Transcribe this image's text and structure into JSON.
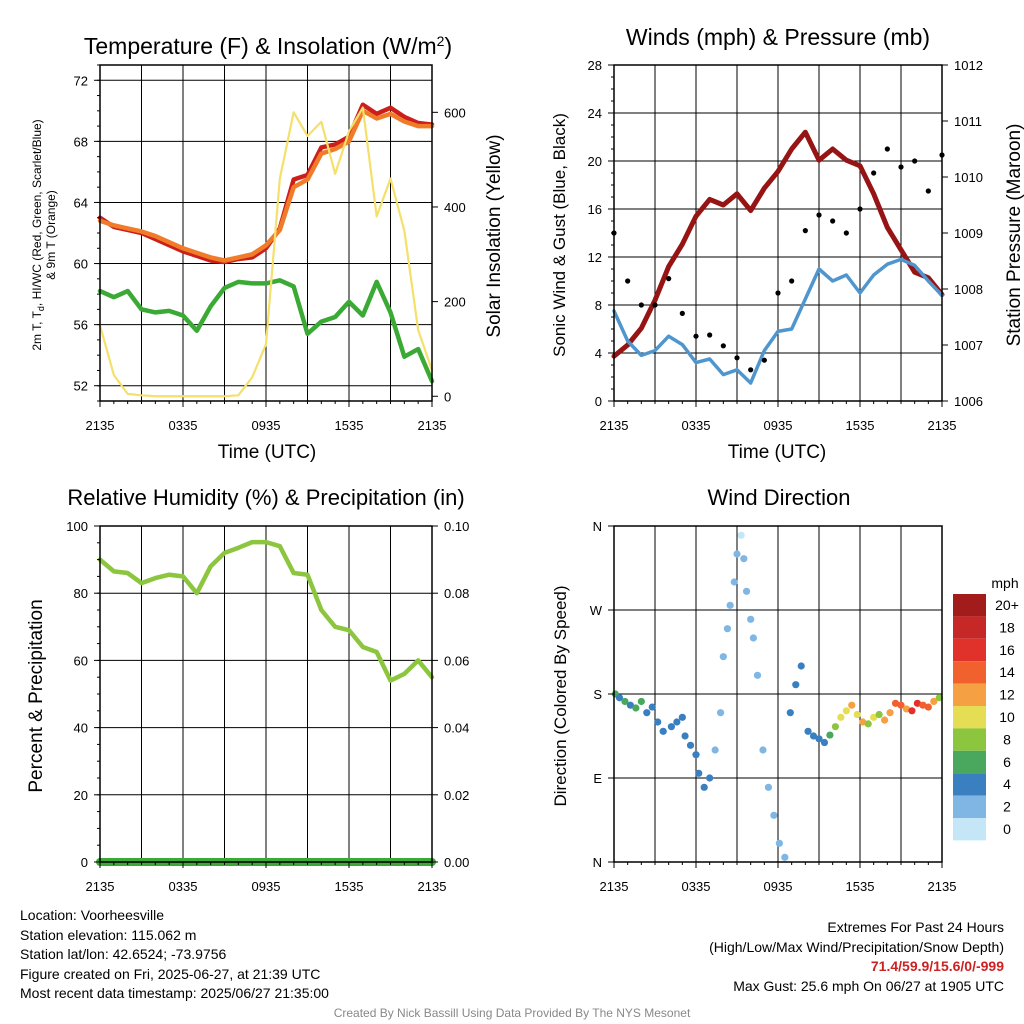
{
  "colors": {
    "temp_2m": "#cc1f1a",
    "heat_index": "#e11e1e",
    "temp_9m": "#f07c2a",
    "dewpoint": "#3aaa35",
    "solar": "#f4e06b",
    "pressure": "#961414",
    "wind": "#4f96cf",
    "gust": "#000000",
    "humidity": "#8cc63f",
    "precip": "#3aaa35"
  },
  "chart_data": [
    {
      "type": "line",
      "title": "Temperature (F) & Insolation (W/m²)",
      "xlabel": "Time (UTC)",
      "ylabel": "2m T, Td, HI/WC (Red, Green, Scarlet/Blue) & 9m T (Orange)",
      "ylabel2": "Solar Insolation (Yellow)",
      "x_ticks": [
        "2135",
        "0335",
        "0935",
        "1535",
        "2135"
      ],
      "y_ticks": [
        52,
        56,
        60,
        64,
        68,
        72
      ],
      "y2_ticks": [
        0,
        200,
        400,
        600
      ],
      "ylim": [
        51,
        73
      ],
      "y2lim": [
        -10,
        700
      ],
      "x": [
        0,
        1,
        2,
        3,
        4,
        5,
        6,
        7,
        8,
        9,
        10,
        11,
        12,
        13,
        14,
        15,
        16,
        17,
        18,
        19,
        20,
        21,
        22,
        23,
        24
      ],
      "series": [
        {
          "key": "temp_2m",
          "values": [
            63,
            62.4,
            62.2,
            62,
            61.6,
            61.2,
            60.8,
            60.5,
            60.2,
            60.1,
            60.3,
            60.4,
            61,
            62.3,
            65.5,
            65.8,
            67.6,
            67.8,
            68.3,
            70.4,
            69.8,
            70.2,
            69.6,
            69.2,
            69.1
          ]
        },
        {
          "key": "temp_9m",
          "values": [
            62.8,
            62.5,
            62.3,
            62.1,
            61.8,
            61.4,
            61,
            60.7,
            60.4,
            60.2,
            60.4,
            60.6,
            61.2,
            62.2,
            65,
            65.5,
            67.2,
            67.5,
            68,
            70,
            69.5,
            69.8,
            69.3,
            69,
            69
          ]
        },
        {
          "key": "dewpoint",
          "values": [
            58.2,
            57.8,
            58.2,
            57,
            56.8,
            56.9,
            56.6,
            55.6,
            57.2,
            58.4,
            58.8,
            58.7,
            58.7,
            58.9,
            58.5,
            55.4,
            56.2,
            56.5,
            57.5,
            56.6,
            58.8,
            56.8,
            53.9,
            54.4,
            52.3
          ]
        },
        {
          "key": "solar",
          "axis": "y2",
          "values": [
            150,
            45,
            5,
            2,
            0,
            0,
            0,
            0,
            0,
            0,
            2,
            40,
            110,
            460,
            600,
            550,
            580,
            470,
            560,
            610,
            380,
            460,
            350,
            140,
            55
          ]
        }
      ]
    },
    {
      "type": "line",
      "title": "Winds (mph) & Pressure (mb)",
      "xlabel": "Time (UTC)",
      "ylabel": "Sonic Wind & Gust (Blue, Black)",
      "ylabel2": "Station Pressure (Maroon)",
      "x_ticks": [
        "2135",
        "0335",
        "0935",
        "1535",
        "2135"
      ],
      "y_ticks": [
        0,
        4,
        8,
        12,
        16,
        20,
        24,
        28
      ],
      "y2_ticks": [
        1006,
        1007,
        1008,
        1009,
        1010,
        1011,
        1012
      ],
      "ylim": [
        0,
        28
      ],
      "y2lim": [
        1006,
        1012
      ],
      "x": [
        0,
        1,
        2,
        3,
        4,
        5,
        6,
        7,
        8,
        9,
        10,
        11,
        12,
        13,
        14,
        15,
        16,
        17,
        18,
        19,
        20,
        21,
        22,
        23,
        24
      ],
      "series": [
        {
          "key": "pressure",
          "axis": "y2",
          "values": [
            1006.8,
            1007,
            1007.3,
            1007.8,
            1008.4,
            1008.8,
            1009.3,
            1009.6,
            1009.5,
            1009.7,
            1009.4,
            1009.8,
            1010.1,
            1010.5,
            1010.8,
            1010.3,
            1010.5,
            1010.3,
            1010.2,
            1009.7,
            1009.1,
            1008.7,
            1008.3,
            1008.2,
            1007.9
          ]
        },
        {
          "key": "wind",
          "values": [
            7.5,
            5,
            3.8,
            4.2,
            5.4,
            4.7,
            3.2,
            3.5,
            2.2,
            2.6,
            1.5,
            4.2,
            5.8,
            6,
            8.5,
            11,
            10,
            10.5,
            9,
            10.5,
            11.4,
            11.8,
            11.3,
            10,
            8.8
          ]
        },
        {
          "key": "gust",
          "type": "scatter",
          "values": [
            14,
            10,
            8,
            8,
            10.2,
            7.3,
            5.4,
            5.5,
            4.6,
            3.6,
            2.6,
            3.4,
            9,
            10,
            14.2,
            15.5,
            15,
            14,
            16,
            19,
            21,
            19.5,
            20,
            17.5,
            20.5
          ]
        }
      ]
    },
    {
      "type": "line",
      "title": "Relative Humidity (%) & Precipitation (in)",
      "ylabel": "Percent & Precipitation",
      "x_ticks": [
        "2135",
        "0335",
        "0935",
        "1535",
        "2135"
      ],
      "y_ticks": [
        0,
        20,
        40,
        60,
        80,
        100
      ],
      "y2_ticks": [
        "0.00",
        "0.02",
        "0.04",
        "0.06",
        "0.08",
        "0.10"
      ],
      "ylim": [
        0,
        100
      ],
      "y2lim": [
        0,
        0.1
      ],
      "x": [
        0,
        1,
        2,
        3,
        4,
        5,
        6,
        7,
        8,
        9,
        10,
        11,
        12,
        13,
        14,
        15,
        16,
        17,
        18,
        19,
        20,
        21,
        22,
        23,
        24
      ],
      "series": [
        {
          "key": "humidity",
          "values": [
            90,
            86.5,
            86,
            83,
            84.5,
            85.5,
            85,
            80,
            88,
            92,
            93.5,
            95.2,
            95.2,
            94,
            86,
            85.5,
            75,
            70,
            69,
            64,
            62.5,
            54,
            56,
            60,
            55
          ]
        },
        {
          "key": "precip",
          "axis": "y2",
          "values": [
            0,
            0,
            0,
            0,
            0,
            0,
            0,
            0,
            0,
            0,
            0,
            0,
            0,
            0,
            0,
            0,
            0,
            0,
            0,
            0,
            0,
            0,
            0,
            0,
            0
          ]
        }
      ]
    },
    {
      "type": "scatter",
      "title": "Wind Direction",
      "ylabel": "Direction (Colored By Speed)",
      "x_ticks": [
        "2135",
        "0335",
        "0935",
        "1535",
        "2135"
      ],
      "y_ticks": [
        "N",
        "E",
        "S",
        "W",
        "N"
      ],
      "ylim": [
        0,
        360
      ],
      "legend_title": "mph",
      "legend_labels": [
        "20+",
        "18",
        "16",
        "14",
        "12",
        "10",
        "8",
        "6",
        "4",
        "2",
        "0"
      ],
      "legend_colors": [
        "#a21c1c",
        "#c62828",
        "#e0312b",
        "#f0612e",
        "#f5a143",
        "#e5dd53",
        "#8cc63f",
        "#4aa85e",
        "#3a7fc0",
        "#7fb6e3",
        "#c4e6f7"
      ],
      "x": [
        0.1,
        0.4,
        0.8,
        1.2,
        1.6,
        2.0,
        2.4,
        2.8,
        3.2,
        3.6,
        4.2,
        4.6,
        5.0,
        5.2,
        5.6,
        6.0,
        6.2,
        6.6,
        7.0,
        7.4,
        7.8,
        8.0,
        8.3,
        8.5,
        8.8,
        9.0,
        9.3,
        9.5,
        9.7,
        10.0,
        10.2,
        10.5,
        10.9,
        11.3,
        11.7,
        12.1,
        12.5,
        12.9,
        13.3,
        13.7,
        14.2,
        14.6,
        15.0,
        15.4,
        15.8,
        16.2,
        16.6,
        17.0,
        17.4,
        17.8,
        18.2,
        18.6,
        19.0,
        19.4,
        19.8,
        20.2,
        20.6,
        21.0,
        21.4,
        21.8,
        22.2,
        22.6,
        23.0,
        23.4,
        23.8
      ],
      "values": [
        180,
        176,
        172,
        168,
        165,
        172,
        160,
        166,
        150,
        140,
        145,
        150,
        155,
        135,
        125,
        115,
        95,
        80,
        90,
        120,
        160,
        220,
        250,
        275,
        300,
        330,
        350,
        325,
        290,
        260,
        240,
        200,
        120,
        80,
        50,
        20,
        5,
        160,
        190,
        210,
        140,
        135,
        132,
        128,
        136,
        145,
        155,
        162,
        168,
        158,
        150,
        148,
        155,
        158,
        152,
        160,
        170,
        168,
        164,
        162,
        170,
        168,
        166,
        172,
        176
      ],
      "speed": [
        5,
        4,
        5,
        4,
        6,
        5,
        4,
        4,
        3,
        4,
        3,
        4,
        3,
        4,
        3,
        3,
        3,
        4,
        3,
        2,
        2,
        1,
        1,
        2,
        1,
        1,
        0,
        1,
        2,
        1,
        2,
        1,
        2,
        1,
        1,
        2,
        1,
        3,
        4,
        3,
        3,
        4,
        3,
        4,
        5,
        7,
        9,
        10,
        11,
        9,
        12,
        8,
        10,
        7,
        11,
        12,
        13,
        14,
        12,
        15,
        16,
        14,
        13,
        12,
        8
      ]
    }
  ],
  "info": {
    "location": "Location: Voorheesville",
    "elevation": "Station elevation: 115.062 m",
    "latlon": "Station lat/lon: 42.6524; -73.9756",
    "created": "Figure created on Fri, 2025-06-27, at 21:39 UTC",
    "recent": "Most recent data timestamp: 2025/06/27 21:35:00"
  },
  "extremes": {
    "title": "Extremes For Past 24 Hours",
    "subtitle": "(High/Low/Max Wind/Precipitation/Snow Depth)",
    "values": "71.4/59.9/15.6/0/-999",
    "gust": "Max Gust: 25.6 mph On 06/27 at 1905 UTC"
  },
  "footer": "Created By Nick Bassill Using Data Provided By The NYS Mesonet"
}
